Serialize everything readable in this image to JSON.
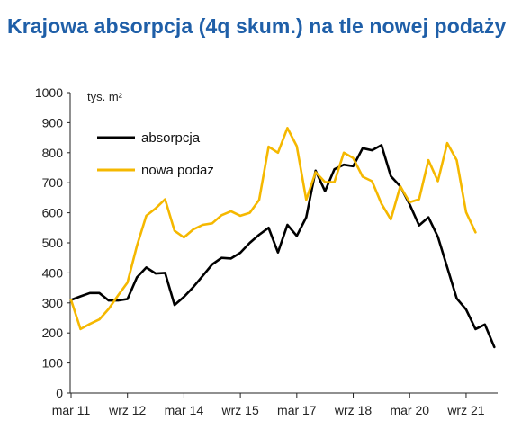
{
  "title": "Krajowa absorpcja (4q skum.) na tle nowej podaży",
  "chart_data": {
    "type": "line",
    "unit_label": "tys. m²",
    "ylim": [
      0,
      1000
    ],
    "yticks": [
      0,
      100,
      200,
      300,
      400,
      500,
      600,
      700,
      800,
      900,
      1000
    ],
    "x_tick_labels": [
      "mar 11",
      "wrz 12",
      "mar 14",
      "wrz 15",
      "mar 17",
      "wrz 18",
      "mar 20",
      "wrz 21"
    ],
    "grid": false,
    "legend_position": "top-left",
    "colors": {
      "absorpcja": "#000000",
      "nowa_podaz": "#f5b800",
      "title": "#1f5fa8"
    },
    "series": [
      {
        "name": "absorpcja",
        "color": "#000000",
        "values": [
          310,
          322,
          333,
          333,
          308,
          308,
          313,
          385,
          418,
          398,
          400,
          293,
          320,
          353,
          390,
          428,
          450,
          448,
          467,
          500,
          527,
          550,
          468,
          560,
          523,
          585,
          740,
          672,
          745,
          760,
          755,
          815,
          808,
          825,
          722,
          688,
          628,
          558,
          585,
          520,
          418,
          315,
          278,
          213,
          228,
          153
        ]
      },
      {
        "name": "nowa podaż",
        "color": "#f5b800",
        "values": [
          310,
          213,
          230,
          245,
          280,
          325,
          368,
          490,
          590,
          615,
          645,
          540,
          518,
          545,
          560,
          565,
          592,
          605,
          590,
          600,
          643,
          820,
          800,
          882,
          822,
          643,
          735,
          702,
          702,
          800,
          782,
          720,
          705,
          630,
          578,
          688,
          635,
          645,
          775,
          705,
          832,
          775,
          602,
          535
        ]
      }
    ]
  }
}
